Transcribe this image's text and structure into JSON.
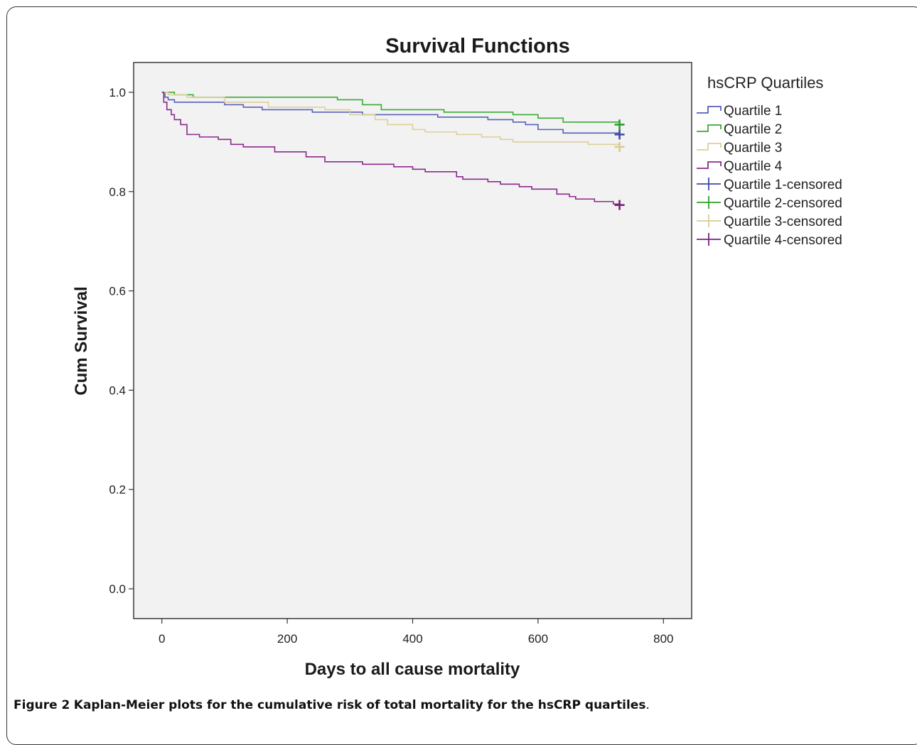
{
  "caption": {
    "label": "Figure 2",
    "text": "Kaplan-Meier plots for the cumulative risk of total mortality for the hsCRP quartiles",
    "end": "."
  },
  "chart_data": {
    "type": "line",
    "title": "Survival Functions",
    "xlabel": "Days to all cause mortality",
    "ylabel": "Cum Survival",
    "xlim": [
      -45,
      845
    ],
    "ylim": [
      -0.06,
      1.06
    ],
    "xticks": [
      0,
      200,
      400,
      600,
      800
    ],
    "xtick_labels": [
      "0",
      "200",
      "400",
      "600",
      "800"
    ],
    "yticks": [
      0.0,
      0.2,
      0.4,
      0.6,
      0.8,
      1.0
    ],
    "ytick_labels": [
      "0.0",
      "0.2",
      "0.4",
      "0.6",
      "0.8",
      "1.0"
    ],
    "grid": false,
    "plot_background": "#f2f2f2",
    "legend": {
      "title": "hsCRP Quartiles",
      "placement": "right-outside-top",
      "entries": [
        {
          "label": "Quartile 1",
          "kind": "step",
          "color": "#5661b8"
        },
        {
          "label": "Quartile 2",
          "kind": "step",
          "color": "#3aaa35"
        },
        {
          "label": "Quartile 3",
          "kind": "step",
          "color": "#dcd09a"
        },
        {
          "label": "Quartile 4",
          "kind": "step",
          "color": "#8b2a8b"
        },
        {
          "label": "Quartile 1-censored",
          "kind": "censor",
          "color": "#3f48a8"
        },
        {
          "label": "Quartile 2-censored",
          "kind": "censor",
          "color": "#2e9e2b"
        },
        {
          "label": "Quartile 3-censored",
          "kind": "censor",
          "color": "#d8cc94"
        },
        {
          "label": "Quartile 4-censored",
          "kind": "censor",
          "color": "#7a1f7a"
        }
      ]
    },
    "series": [
      {
        "name": "Quartile 1",
        "color": "#5661b8",
        "censor_color": "#3f48a8",
        "x": [
          0,
          5,
          10,
          20,
          100,
          130,
          160,
          240,
          320,
          440,
          520,
          560,
          580,
          600,
          640,
          730
        ],
        "y": [
          1.0,
          0.99,
          0.985,
          0.98,
          0.975,
          0.97,
          0.965,
          0.96,
          0.955,
          0.95,
          0.945,
          0.94,
          0.935,
          0.925,
          0.918,
          0.915
        ],
        "censor": {
          "x": 730,
          "y": 0.915
        }
      },
      {
        "name": "Quartile 2",
        "color": "#3aaa35",
        "censor_color": "#2e9e2b",
        "x": [
          0,
          20,
          50,
          280,
          320,
          350,
          450,
          560,
          600,
          640,
          730
        ],
        "y": [
          1.0,
          0.995,
          0.99,
          0.985,
          0.975,
          0.965,
          0.96,
          0.955,
          0.948,
          0.94,
          0.935
        ],
        "censor": {
          "x": 730,
          "y": 0.935
        }
      },
      {
        "name": "Quartile 3",
        "color": "#dcd09a",
        "censor_color": "#d8cc94",
        "x": [
          0,
          10,
          40,
          100,
          170,
          260,
          300,
          340,
          360,
          400,
          420,
          470,
          510,
          540,
          560,
          680,
          730
        ],
        "y": [
          1.0,
          0.995,
          0.99,
          0.98,
          0.97,
          0.965,
          0.955,
          0.945,
          0.935,
          0.925,
          0.92,
          0.915,
          0.91,
          0.905,
          0.9,
          0.895,
          0.89
        ],
        "censor": {
          "x": 730,
          "y": 0.89
        }
      },
      {
        "name": "Quartile 4",
        "color": "#8b2a8b",
        "censor_color": "#7a1f7a",
        "x": [
          0,
          3,
          8,
          15,
          20,
          30,
          40,
          60,
          90,
          110,
          130,
          180,
          230,
          260,
          320,
          370,
          400,
          420,
          470,
          480,
          520,
          540,
          570,
          590,
          630,
          650,
          660,
          690,
          720,
          730
        ],
        "y": [
          1.0,
          0.98,
          0.965,
          0.955,
          0.945,
          0.935,
          0.915,
          0.91,
          0.905,
          0.895,
          0.89,
          0.88,
          0.87,
          0.86,
          0.855,
          0.85,
          0.845,
          0.84,
          0.83,
          0.825,
          0.82,
          0.815,
          0.81,
          0.805,
          0.795,
          0.79,
          0.785,
          0.78,
          0.775,
          0.773
        ],
        "censor": {
          "x": 730,
          "y": 0.773
        }
      }
    ]
  }
}
